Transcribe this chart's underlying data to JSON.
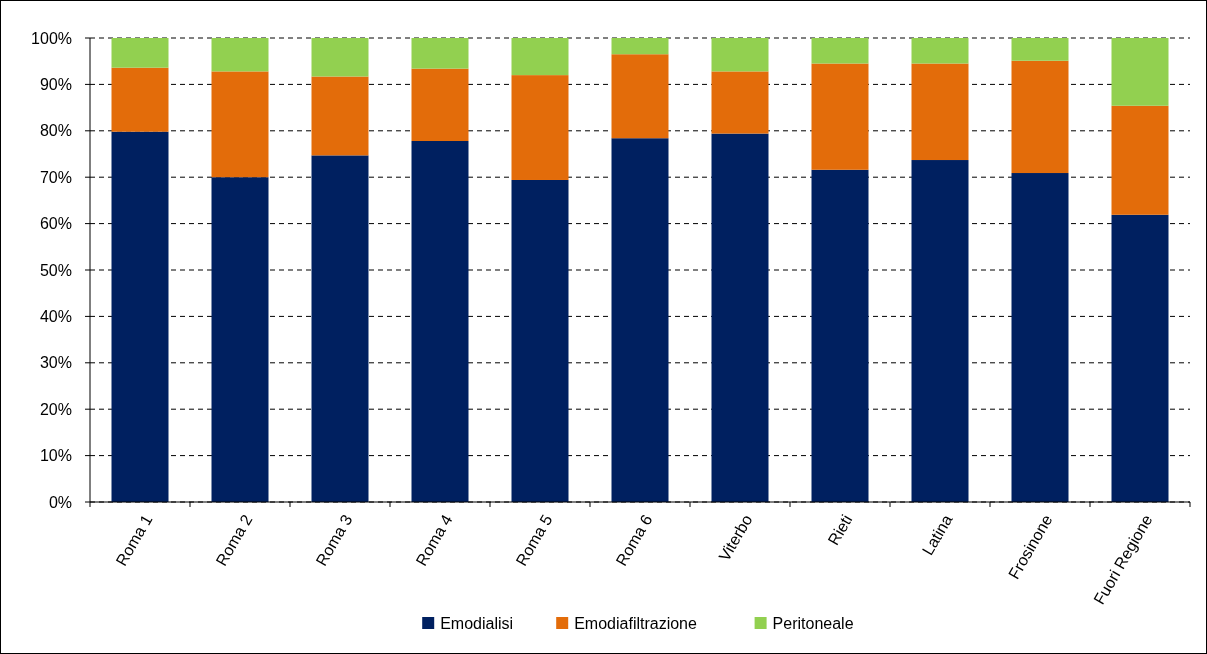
{
  "chart_data": {
    "type": "bar",
    "stacked": true,
    "categories": [
      "Roma 1",
      "Roma 2",
      "Roma 3",
      "Roma 4",
      "Roma 5",
      "Roma 6",
      "Viterbo",
      "Rieti",
      "Latina",
      "Frosinone",
      "Fuori Regione"
    ],
    "series": [
      {
        "name": "Emodialisi",
        "color": "#002060",
        "values": [
          79.8,
          70.0,
          74.7,
          77.8,
          69.4,
          78.4,
          79.4,
          71.6,
          73.7,
          70.9,
          61.9
        ]
      },
      {
        "name": "Emodiafiltrazione",
        "color": "#e36c0a",
        "values": [
          13.8,
          22.8,
          17.0,
          15.6,
          22.6,
          18.1,
          13.4,
          22.9,
          20.8,
          24.2,
          23.5
        ]
      },
      {
        "name": "Peritoneale",
        "color": "#92d050",
        "values": [
          6.4,
          7.2,
          8.3,
          6.6,
          8.0,
          3.5,
          7.2,
          5.5,
          5.5,
          4.9,
          14.6
        ]
      }
    ],
    "ylim": [
      0,
      100
    ],
    "yticks": [
      {
        "value": 0,
        "label": "0%"
      },
      {
        "value": 10,
        "label": "10%"
      },
      {
        "value": 20,
        "label": "20%"
      },
      {
        "value": 30,
        "label": "30%"
      },
      {
        "value": 40,
        "label": "40%"
      },
      {
        "value": 50,
        "label": "50%"
      },
      {
        "value": 60,
        "label": "60%"
      },
      {
        "value": 70,
        "label": "70%"
      },
      {
        "value": 80,
        "label": "80%"
      },
      {
        "value": 90,
        "label": "90%"
      },
      {
        "value": 100,
        "label": "100%"
      }
    ],
    "grid": "y",
    "legend": "bottom"
  }
}
